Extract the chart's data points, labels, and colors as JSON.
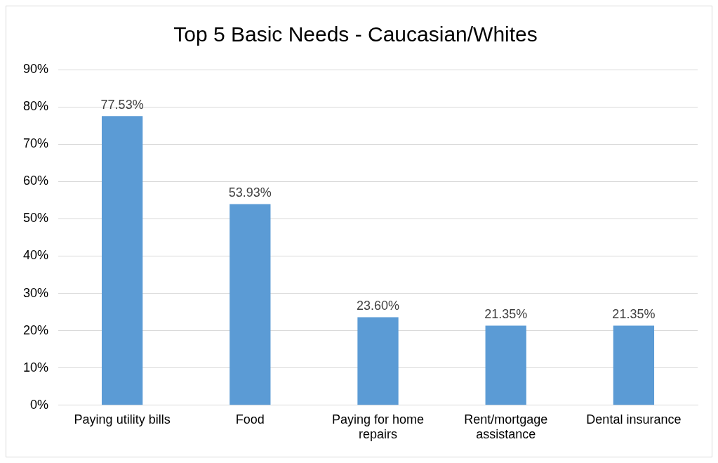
{
  "chart_data": {
    "type": "bar",
    "title": "Top 5 Basic Needs - Caucasian/Whites",
    "categories": [
      "Paying utility bills",
      "Food",
      "Paying for home repairs",
      "Rent/mortgage assistance",
      "Dental insurance"
    ],
    "values": [
      77.53,
      53.93,
      23.6,
      21.35,
      21.35
    ],
    "value_labels": [
      "77.53%",
      "53.93%",
      "23.60%",
      "21.35%",
      "21.35%"
    ],
    "color": "#5b9bd5",
    "ylim": [
      0,
      90
    ],
    "yticks": [
      {
        "value": 0,
        "label": "0%"
      },
      {
        "value": 10,
        "label": "10%"
      },
      {
        "value": 20,
        "label": "20%"
      },
      {
        "value": 30,
        "label": "30%"
      },
      {
        "value": 40,
        "label": "40%"
      },
      {
        "value": 50,
        "label": "50%"
      },
      {
        "value": 60,
        "label": "60%"
      },
      {
        "value": 70,
        "label": "70%"
      },
      {
        "value": 80,
        "label": "80%"
      },
      {
        "value": 90,
        "label": "90%"
      }
    ],
    "grid": "y",
    "legend": false
  }
}
